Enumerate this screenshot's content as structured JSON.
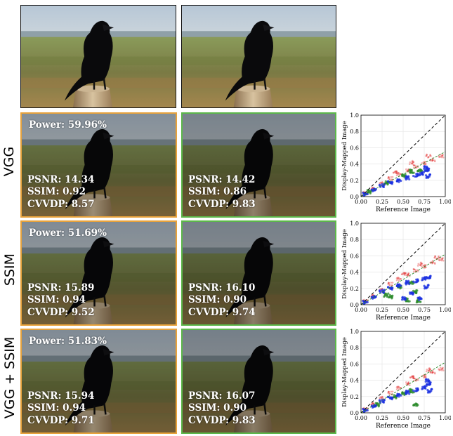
{
  "row_labels": [
    "VGG",
    "SSIM",
    "VGG + SSIM"
  ],
  "rows": [
    {
      "power": "Power: 59.96%",
      "orange": {
        "psnr": "PSNR: 14.34",
        "ssim": "SSIM: 0.92",
        "cvvdp": "CVVDP: 8.57"
      },
      "green": {
        "psnr": "PSNR: 14.42",
        "ssim": "SSIM: 0.86",
        "cvvdp": "CVVDP: 9.83"
      }
    },
    {
      "power": "Power: 51.69%",
      "orange": {
        "psnr": "PSNR: 15.89",
        "ssim": "SSIM: 0.94",
        "cvvdp": "CVVDP: 9.52"
      },
      "green": {
        "psnr": "PSNR: 16.10",
        "ssim": "SSIM: 0.90",
        "cvvdp": "CVVDP: 9.74"
      }
    },
    {
      "power": "Power: 51.83%",
      "orange": {
        "psnr": "PSNR: 15.94",
        "ssim": "SSIM: 0.94",
        "cvvdp": "CVVDP: 9.71"
      },
      "green": {
        "psnr": "PSNR: 16.07",
        "ssim": "SSIM: 0.90",
        "cvvdp": "CVVDP: 9.83"
      }
    }
  ],
  "colors": {
    "orange_border": "#e8a33c",
    "green_border": "#5cb84a",
    "red": "#e02020",
    "green": "#2a8a2a",
    "blue": "#1a2fe0"
  },
  "chart_data": [
    {
      "type": "scatter",
      "xlabel": "Reference Image",
      "ylabel": "Display-Mapped Image",
      "xlim": [
        0,
        1
      ],
      "ylim": [
        0,
        1
      ],
      "xticks": [
        "0.00",
        "0.25",
        "0.50",
        "0.75",
        "1.00"
      ],
      "yticks": [
        "0.0",
        "0.2",
        "0.4",
        "0.6",
        "0.8",
        "1.0"
      ],
      "grid": true,
      "reference_line": {
        "x": [
          0,
          1
        ],
        "y": [
          0,
          1
        ],
        "style": "dashed",
        "color": "#000000"
      },
      "fit_line": {
        "x": [
          0,
          1
        ],
        "y": [
          0,
          0.55
        ],
        "style": "dashed",
        "color": "#2a8a2a"
      },
      "series": [
        {
          "color": "#e02020",
          "points": [
            [
              0.05,
              0.04
            ],
            [
              0.15,
              0.1
            ],
            [
              0.25,
              0.16
            ],
            [
              0.35,
              0.22
            ],
            [
              0.45,
              0.27
            ],
            [
              0.55,
              0.32
            ],
            [
              0.65,
              0.37
            ],
            [
              0.75,
              0.41
            ],
            [
              0.85,
              0.45
            ],
            [
              0.95,
              0.5
            ],
            [
              0.4,
              0.3
            ],
            [
              0.6,
              0.42
            ],
            [
              0.8,
              0.5
            ]
          ]
        },
        {
          "color": "#2a8a2a",
          "points": [
            [
              0.1,
              0.06
            ],
            [
              0.3,
              0.17
            ],
            [
              0.5,
              0.26
            ],
            [
              0.6,
              0.31
            ],
            [
              0.7,
              0.32
            ]
          ]
        },
        {
          "color": "#1a2fe0",
          "points": [
            [
              0.05,
              0.03
            ],
            [
              0.15,
              0.08
            ],
            [
              0.25,
              0.13
            ],
            [
              0.35,
              0.17
            ],
            [
              0.45,
              0.2
            ],
            [
              0.55,
              0.23
            ],
            [
              0.65,
              0.26
            ],
            [
              0.72,
              0.28
            ],
            [
              0.78,
              0.33
            ],
            [
              0.8,
              0.25
            ],
            [
              0.76,
              0.36
            ]
          ]
        }
      ]
    },
    {
      "type": "scatter",
      "xlabel": "Reference Image",
      "ylabel": "Display-Mapped Image",
      "xlim": [
        0,
        1
      ],
      "ylim": [
        0,
        1
      ],
      "xticks": [
        "0.00",
        "0.25",
        "0.50",
        "0.75",
        "1.00"
      ],
      "yticks": [
        "0.0",
        "0.2",
        "0.4",
        "0.6",
        "0.8",
        "1.0"
      ],
      "grid": true,
      "reference_line": {
        "x": [
          0,
          1
        ],
        "y": [
          0,
          1
        ],
        "style": "dashed",
        "color": "#000000"
      },
      "fit_line": {
        "x": [
          0,
          1
        ],
        "y": [
          0,
          0.62
        ],
        "style": "dashed",
        "color": "#2a8a2a"
      },
      "series": [
        {
          "color": "#e02020",
          "points": [
            [
              0.05,
              0.04
            ],
            [
              0.15,
              0.11
            ],
            [
              0.25,
              0.18
            ],
            [
              0.35,
              0.25
            ],
            [
              0.45,
              0.31
            ],
            [
              0.55,
              0.37
            ],
            [
              0.65,
              0.42
            ],
            [
              0.75,
              0.47
            ],
            [
              0.85,
              0.52
            ],
            [
              0.95,
              0.56
            ],
            [
              0.5,
              0.38
            ],
            [
              0.7,
              0.5
            ],
            [
              0.9,
              0.58
            ]
          ]
        },
        {
          "color": "#2a8a2a",
          "points": [
            [
              0.3,
              0.12
            ],
            [
              0.35,
              0.1
            ],
            [
              0.45,
              0.22
            ],
            [
              0.55,
              0.06
            ],
            [
              0.6,
              0.27
            ],
            [
              0.65,
              0.16
            ],
            [
              0.68,
              0.05
            ]
          ]
        },
        {
          "color": "#1a2fe0",
          "points": [
            [
              0.05,
              0.03
            ],
            [
              0.15,
              0.09
            ],
            [
              0.25,
              0.16
            ],
            [
              0.35,
              0.2
            ],
            [
              0.45,
              0.24
            ],
            [
              0.55,
              0.27
            ],
            [
              0.65,
              0.29
            ],
            [
              0.75,
              0.32
            ],
            [
              0.8,
              0.34
            ],
            [
              0.78,
              0.22
            ],
            [
              0.5,
              0.08
            ],
            [
              0.7,
              0.07
            ],
            [
              0.6,
              0.14
            ]
          ]
        }
      ]
    },
    {
      "type": "scatter",
      "xlabel": "Reference Image",
      "ylabel": "Display-Mapped Image",
      "xlim": [
        0,
        1
      ],
      "ylim": [
        0,
        1
      ],
      "xticks": [
        "0.00",
        "0.25",
        "0.50",
        "0.75",
        "1.00"
      ],
      "yticks": [
        "0.0",
        "0.2",
        "0.4",
        "0.6",
        "0.8",
        "1.0"
      ],
      "grid": true,
      "reference_line": {
        "x": [
          0,
          1
        ],
        "y": [
          0,
          1
        ],
        "style": "dashed",
        "color": "#000000"
      },
      "fit_line": {
        "x": [
          0,
          1
        ],
        "y": [
          0,
          0.62
        ],
        "style": "dashed",
        "color": "#2a8a2a"
      },
      "series": [
        {
          "color": "#e02020",
          "points": [
            [
              0.05,
              0.04
            ],
            [
              0.15,
              0.11
            ],
            [
              0.25,
              0.18
            ],
            [
              0.35,
              0.24
            ],
            [
              0.45,
              0.3
            ],
            [
              0.55,
              0.36
            ],
            [
              0.65,
              0.41
            ],
            [
              0.75,
              0.45
            ],
            [
              0.85,
              0.5
            ],
            [
              0.95,
              0.54
            ],
            [
              0.6,
              0.44
            ],
            [
              0.8,
              0.53
            ]
          ]
        },
        {
          "color": "#2a8a2a",
          "points": [
            [
              0.2,
              0.1
            ],
            [
              0.4,
              0.2
            ],
            [
              0.5,
              0.24
            ],
            [
              0.6,
              0.27
            ],
            [
              0.65,
              0.1
            ]
          ]
        },
        {
          "color": "#1a2fe0",
          "points": [
            [
              0.05,
              0.03
            ],
            [
              0.15,
              0.08
            ],
            [
              0.25,
              0.14
            ],
            [
              0.35,
              0.18
            ],
            [
              0.45,
              0.22
            ],
            [
              0.55,
              0.25
            ],
            [
              0.65,
              0.28
            ],
            [
              0.75,
              0.31
            ],
            [
              0.8,
              0.36
            ],
            [
              0.82,
              0.27
            ],
            [
              0.78,
              0.4
            ]
          ]
        }
      ]
    }
  ]
}
